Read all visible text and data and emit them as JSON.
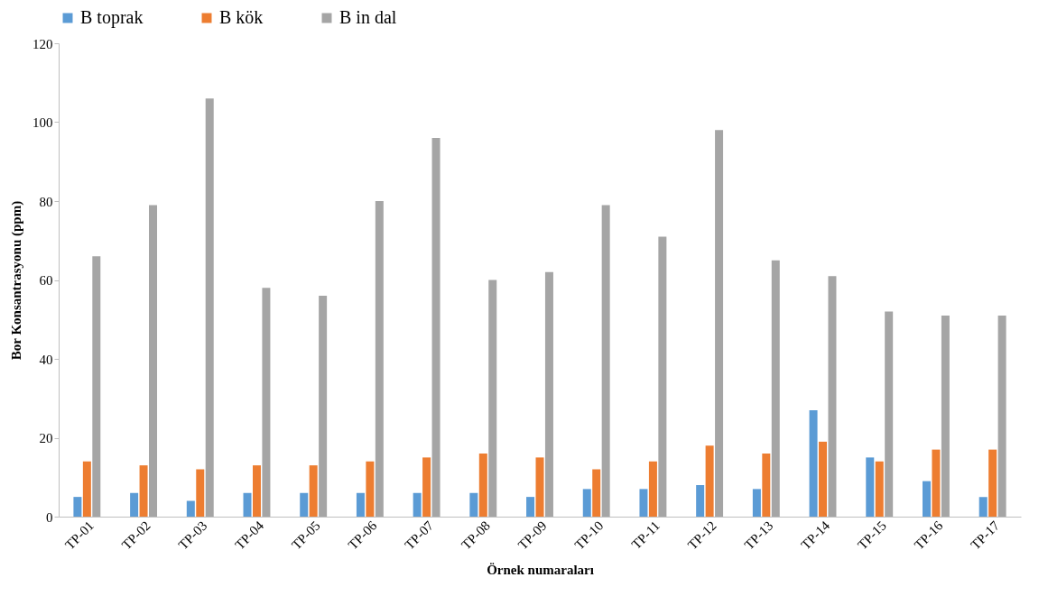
{
  "chart_data": {
    "type": "bar",
    "xlabel": "Örnek numaraları",
    "ylabel": "Bor Konsantrasyonu (ppm)",
    "categories": [
      "TP-01",
      "TP-02",
      "TP-03",
      "TP-04",
      "TP-05",
      "TP-06",
      "TP-07",
      "TP-08",
      "TP-09",
      "TP-10",
      "TP-11",
      "TP-12",
      "TP-13",
      "TP-14",
      "TP-15",
      "TP-16",
      "TP-17"
    ],
    "series": [
      {
        "name": "B toprak",
        "color": "#5b9bd5",
        "values": [
          5,
          6,
          4,
          6,
          6,
          6,
          6,
          6,
          5,
          7,
          7,
          8,
          7,
          27,
          15,
          9,
          5
        ]
      },
      {
        "name": "B kök",
        "color": "#ed7d31",
        "values": [
          14,
          13,
          12,
          13,
          13,
          14,
          15,
          16,
          15,
          12,
          14,
          18,
          16,
          19,
          14,
          17,
          17
        ]
      },
      {
        "name": "B in dal",
        "color": "#a5a5a5",
        "values": [
          66,
          79,
          106,
          58,
          56,
          80,
          96,
          60,
          62,
          79,
          71,
          98,
          65,
          61,
          52,
          51,
          51
        ]
      }
    ],
    "ylim": [
      0,
      120
    ],
    "yticks": [
      0,
      20,
      40,
      60,
      80,
      100,
      120
    ],
    "grid": false,
    "legend": "top"
  }
}
